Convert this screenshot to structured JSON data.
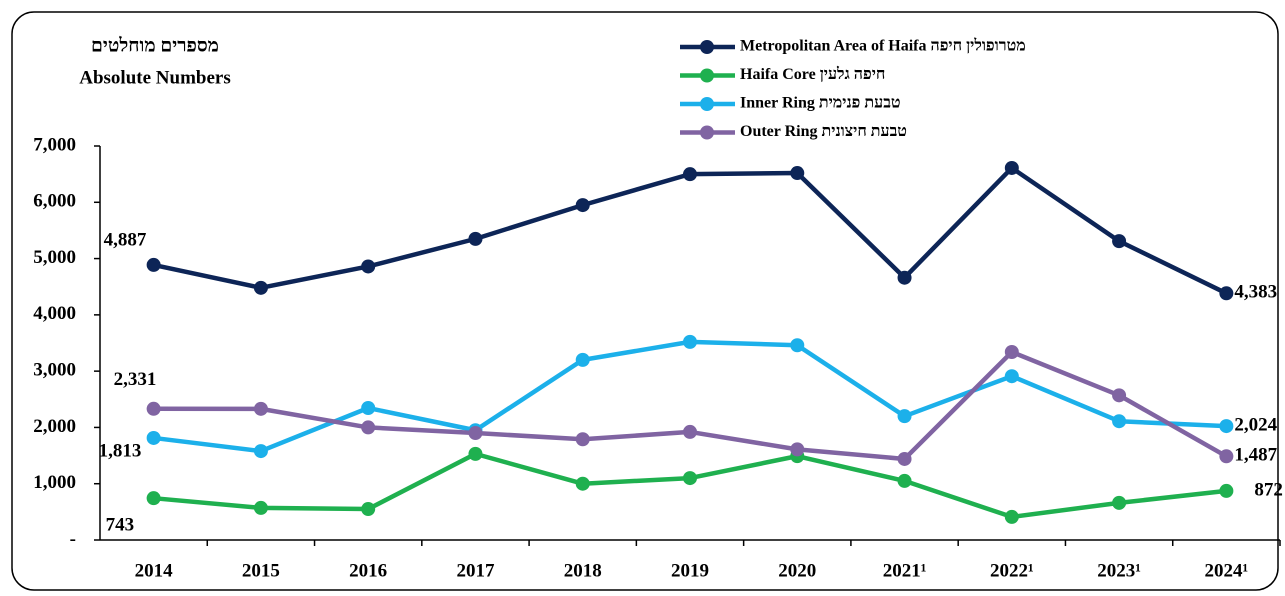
{
  "chart_data": {
    "type": "line",
    "title": "מספרים מוחלטים",
    "subtitle": "Absolute Numbers",
    "categories": [
      "2014",
      "2015",
      "2016",
      "2017",
      "2018",
      "2019",
      "2020",
      "2021¹",
      "2022¹",
      "2023¹",
      "2024¹"
    ],
    "series": [
      {
        "name": "Metropolitan Area of Haifa מטרופולין חיפה",
        "color": "#0d2557",
        "values": [
          4887,
          4480,
          4860,
          5350,
          5950,
          6500,
          6520,
          4660,
          6610,
          5310,
          4383
        ],
        "value_labels": [
          "4,887",
          null,
          null,
          null,
          null,
          null,
          null,
          null,
          null,
          null,
          "4,383"
        ]
      },
      {
        "name": "Haifa Core חיפה גלעין",
        "color": "#1fb04f",
        "values": [
          743,
          570,
          550,
          1530,
          1000,
          1100,
          1490,
          1050,
          410,
          660,
          872
        ],
        "value_labels": [
          "743",
          null,
          null,
          null,
          null,
          null,
          null,
          null,
          null,
          null,
          "872"
        ]
      },
      {
        "name": "Inner Ring טבעת פנימית",
        "color": "#1cb0ea",
        "values": [
          1813,
          1580,
          2345,
          1950,
          3200,
          3520,
          3460,
          2200,
          2910,
          2110,
          2024
        ],
        "value_labels": [
          "1,813",
          null,
          null,
          null,
          null,
          null,
          null,
          null,
          null,
          null,
          "2,024"
        ]
      },
      {
        "name": "Outer Ring טבעת חיצונית",
        "color": "#8064a2",
        "values": [
          2331,
          2330,
          2000,
          1900,
          1790,
          1920,
          1610,
          1440,
          3340,
          2570,
          1487
        ],
        "value_labels": [
          "2,331",
          null,
          null,
          null,
          null,
          null,
          null,
          null,
          null,
          null,
          "1,487"
        ]
      }
    ],
    "ylim": [
      0,
      7000
    ],
    "yticks": [
      {
        "value": 0,
        "label": "-"
      },
      {
        "value": 1000,
        "label": "1,000"
      },
      {
        "value": 2000,
        "label": "2,000"
      },
      {
        "value": 3000,
        "label": "3,000"
      },
      {
        "value": 4000,
        "label": "4,000"
      },
      {
        "value": 5000,
        "label": "5,000"
      },
      {
        "value": 6000,
        "label": "6,000"
      },
      {
        "value": 7000,
        "label": "7,000"
      }
    ],
    "grid": false,
    "legend": "top"
  }
}
